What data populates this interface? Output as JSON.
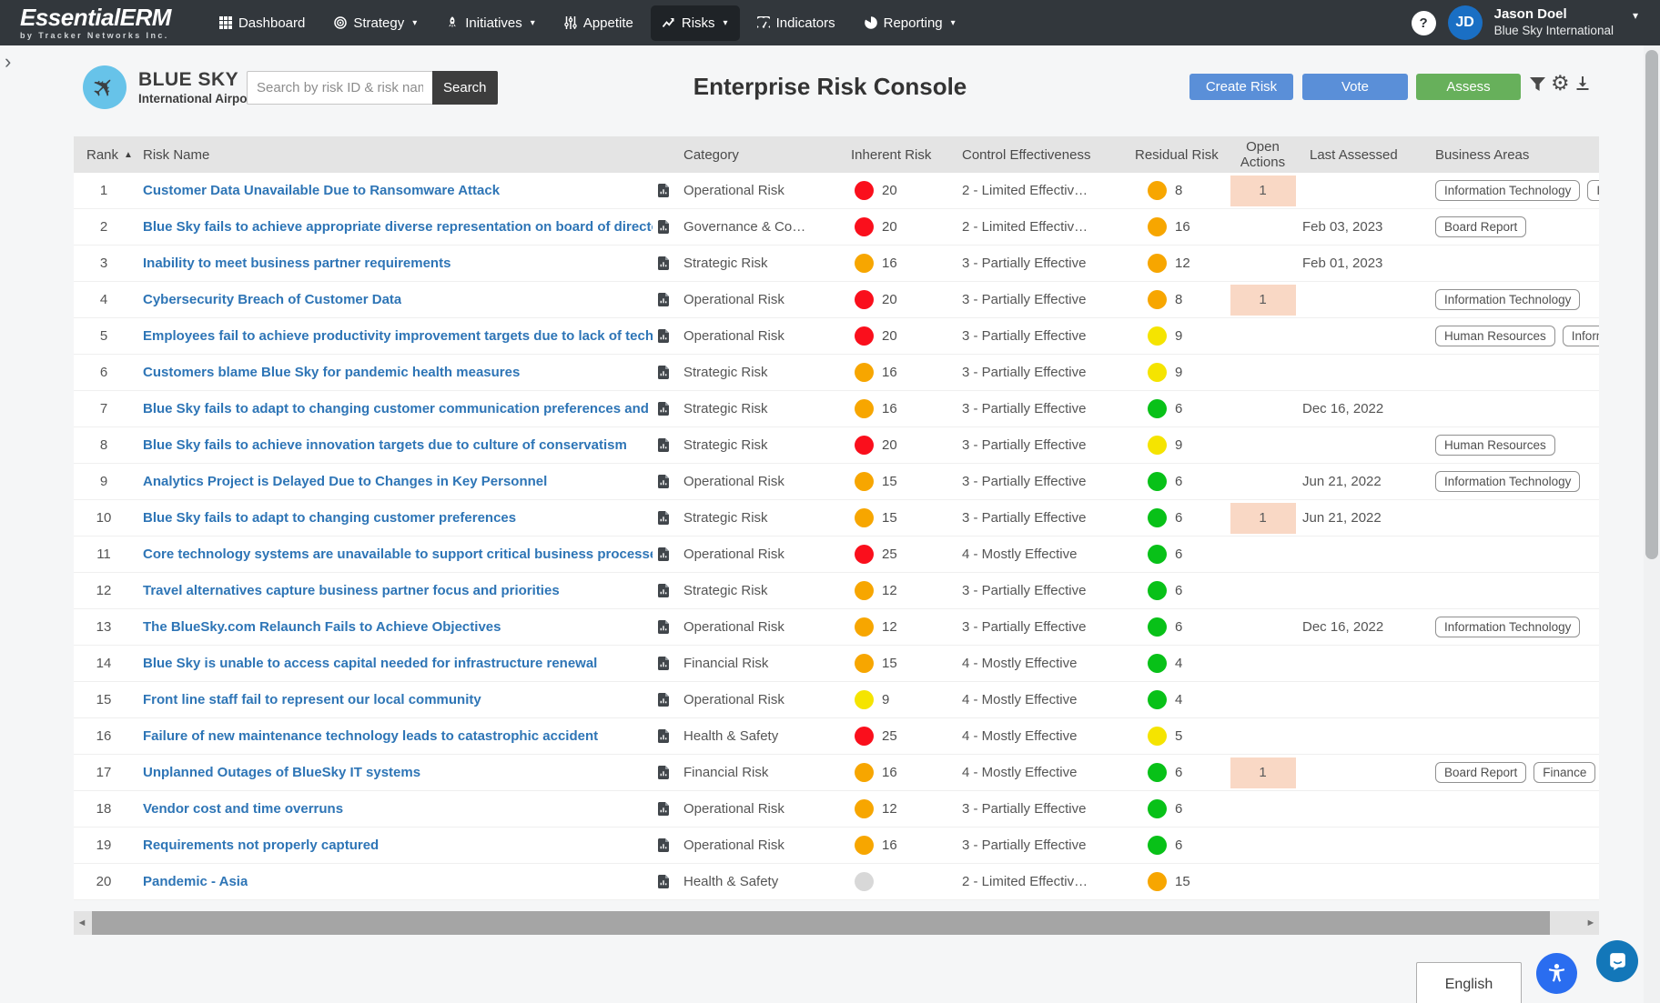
{
  "navbar": {
    "brand": "EssentialERM",
    "brand_sub": "by Tracker Networks Inc.",
    "items": [
      {
        "label": "Dashboard",
        "icon": "grid-icon",
        "caret": false,
        "active": false
      },
      {
        "label": "Strategy",
        "icon": "target-icon",
        "caret": true,
        "active": false
      },
      {
        "label": "Initiatives",
        "icon": "rocket-icon",
        "caret": true,
        "active": false
      },
      {
        "label": "Appetite",
        "icon": "sliders-icon",
        "caret": false,
        "active": false
      },
      {
        "label": "Risks",
        "icon": "trend-icon",
        "caret": true,
        "active": true
      },
      {
        "label": "Indicators",
        "icon": "gauge-icon",
        "caret": false,
        "active": false
      },
      {
        "label": "Reporting",
        "icon": "pie-icon",
        "caret": true,
        "active": false
      }
    ],
    "user": {
      "initials": "JD",
      "name": "Jason Doel",
      "org": "Blue Sky International"
    }
  },
  "header": {
    "org": {
      "line1": "BLUE SKY",
      "line2": "International Airport"
    },
    "search": {
      "placeholder": "Search by risk ID & risk name",
      "value": "",
      "button": "Search"
    },
    "title": "Enterprise Risk Console",
    "buttons": {
      "create": "Create Risk",
      "vote": "Vote",
      "assess": "Assess"
    }
  },
  "icons": {
    "sort": "▲",
    "nav_caret": "▾",
    "user_caret": "▾",
    "help": "?",
    "gear": "⚙",
    "plane": "✈",
    "chevron_expand": "›",
    "scroll_left": "◄",
    "scroll_right": "►"
  },
  "colors": {
    "red": "#fa0f1c",
    "orange": "#f7a600",
    "yellow": "#f5e400",
    "green": "#08c118",
    "gray": "#d8d8d8",
    "button_blue": "#5a8fd8",
    "button_green": "#67b05b",
    "actions_bg": "#f9d8c5"
  },
  "table": {
    "columns": {
      "rank": "Rank",
      "name": "Risk Name",
      "category": "Category",
      "inherent": "Inherent Risk",
      "control": "Control Effectiveness",
      "residual": "Residual Risk",
      "actions": "Open Actions",
      "assessed": "Last Assessed",
      "areas": "Business Areas"
    },
    "rows": [
      {
        "rank": 1,
        "name": "Customer Data Unavailable Due to Ransomware Attack",
        "category": "Operational Risk",
        "inherent": {
          "color": "red",
          "value": "20"
        },
        "control": "2 - Limited Effectiv…",
        "residual": {
          "color": "orange",
          "value": "8"
        },
        "open_actions": "1",
        "assessed": "",
        "areas": [
          "Information Technology",
          "Information Technology"
        ]
      },
      {
        "rank": 2,
        "name": "Blue Sky fails to achieve appropriate diverse representation on board of directors",
        "category": "Governance & Co…",
        "inherent": {
          "color": "red",
          "value": "20"
        },
        "control": "2 - Limited Effectiv…",
        "residual": {
          "color": "orange",
          "value": "16"
        },
        "open_actions": "",
        "assessed": "Feb 03, 2023",
        "areas": [
          "Board Report"
        ]
      },
      {
        "rank": 3,
        "name": "Inability to meet business partner requirements",
        "category": "Strategic Risk",
        "inherent": {
          "color": "orange",
          "value": "16"
        },
        "control": "3 - Partially Effective",
        "residual": {
          "color": "orange",
          "value": "12"
        },
        "open_actions": "",
        "assessed": "Feb 01, 2023",
        "areas": []
      },
      {
        "rank": 4,
        "name": "Cybersecurity Breach of Customer Data",
        "category": "Operational Risk",
        "inherent": {
          "color": "red",
          "value": "20"
        },
        "control": "3 - Partially Effective",
        "residual": {
          "color": "orange",
          "value": "8"
        },
        "open_actions": "1",
        "assessed": "",
        "areas": [
          "Information Technology"
        ]
      },
      {
        "rank": 5,
        "name": "Employees fail to achieve productivity improvement targets due to lack of technology and…",
        "category": "Operational Risk",
        "inherent": {
          "color": "red",
          "value": "20"
        },
        "control": "3 - Partially Effective",
        "residual": {
          "color": "yellow",
          "value": "9"
        },
        "open_actions": "",
        "assessed": "",
        "areas": [
          "Human Resources",
          "Information Technology"
        ]
      },
      {
        "rank": 6,
        "name": "Customers blame Blue Sky for pandemic health measures",
        "category": "Strategic Risk",
        "inherent": {
          "color": "orange",
          "value": "16"
        },
        "control": "3 - Partially Effective",
        "residual": {
          "color": "yellow",
          "value": "9"
        },
        "open_actions": "",
        "assessed": "",
        "areas": []
      },
      {
        "rank": 7,
        "name": "Blue Sky fails to adapt to changing customer communication preferences and channels",
        "category": "Strategic Risk",
        "inherent": {
          "color": "orange",
          "value": "16"
        },
        "control": "3 - Partially Effective",
        "residual": {
          "color": "green",
          "value": "6"
        },
        "open_actions": "",
        "assessed": "Dec 16, 2022",
        "areas": []
      },
      {
        "rank": 8,
        "name": "Blue Sky fails to achieve innovation targets due to culture of conservatism",
        "category": "Strategic Risk",
        "inherent": {
          "color": "red",
          "value": "20"
        },
        "control": "3 - Partially Effective",
        "residual": {
          "color": "yellow",
          "value": "9"
        },
        "open_actions": "",
        "assessed": "",
        "areas": [
          "Human Resources"
        ]
      },
      {
        "rank": 9,
        "name": "Analytics Project is Delayed Due to Changes in Key Personnel",
        "category": "Operational Risk",
        "inherent": {
          "color": "orange",
          "value": "15"
        },
        "control": "3 - Partially Effective",
        "residual": {
          "color": "green",
          "value": "6"
        },
        "open_actions": "",
        "assessed": "Jun 21, 2022",
        "areas": [
          "Information Technology"
        ]
      },
      {
        "rank": 10,
        "name": "Blue Sky fails to adapt to changing customer preferences",
        "category": "Strategic Risk",
        "inherent": {
          "color": "orange",
          "value": "15"
        },
        "control": "3 - Partially Effective",
        "residual": {
          "color": "green",
          "value": "6"
        },
        "open_actions": "1",
        "assessed": "Jun 21, 2022",
        "areas": []
      },
      {
        "rank": 11,
        "name": "Core technology systems are unavailable to support critical business processes",
        "category": "Operational Risk",
        "inherent": {
          "color": "red",
          "value": "25"
        },
        "control": "4 - Mostly Effective",
        "residual": {
          "color": "green",
          "value": "6"
        },
        "open_actions": "",
        "assessed": "",
        "areas": []
      },
      {
        "rank": 12,
        "name": "Travel alternatives capture business partner focus and priorities",
        "category": "Strategic Risk",
        "inherent": {
          "color": "orange",
          "value": "12"
        },
        "control": "3 - Partially Effective",
        "residual": {
          "color": "green",
          "value": "6"
        },
        "open_actions": "",
        "assessed": "",
        "areas": []
      },
      {
        "rank": 13,
        "name": "The BlueSky.com Relaunch Fails to Achieve Objectives",
        "category": "Operational Risk",
        "inherent": {
          "color": "orange",
          "value": "12"
        },
        "control": "3 - Partially Effective",
        "residual": {
          "color": "green",
          "value": "6"
        },
        "open_actions": "",
        "assessed": "Dec 16, 2022",
        "areas": [
          "Information Technology"
        ]
      },
      {
        "rank": 14,
        "name": "Blue Sky is unable to access capital needed for infrastructure renewal",
        "category": "Financial Risk",
        "inherent": {
          "color": "orange",
          "value": "15"
        },
        "control": "4 - Mostly Effective",
        "residual": {
          "color": "green",
          "value": "4"
        },
        "open_actions": "",
        "assessed": "",
        "areas": []
      },
      {
        "rank": 15,
        "name": "Front line staff fail to represent our local community",
        "category": "Operational Risk",
        "inherent": {
          "color": "yellow",
          "value": "9"
        },
        "control": "4 - Mostly Effective",
        "residual": {
          "color": "green",
          "value": "4"
        },
        "open_actions": "",
        "assessed": "",
        "areas": []
      },
      {
        "rank": 16,
        "name": "Failure of new maintenance technology leads to catastrophic accident",
        "category": "Health & Safety",
        "inherent": {
          "color": "red",
          "value": "25"
        },
        "control": "4 - Mostly Effective",
        "residual": {
          "color": "yellow",
          "value": "5"
        },
        "open_actions": "",
        "assessed": "",
        "areas": []
      },
      {
        "rank": 17,
        "name": "Unplanned Outages of BlueSky IT systems",
        "category": "Financial Risk",
        "inherent": {
          "color": "orange",
          "value": "16"
        },
        "control": "4 - Mostly Effective",
        "residual": {
          "color": "green",
          "value": "6"
        },
        "open_actions": "1",
        "assessed": "",
        "areas": [
          "Board Report",
          "Finance"
        ]
      },
      {
        "rank": 18,
        "name": "Vendor cost and time overruns",
        "category": "Operational Risk",
        "inherent": {
          "color": "orange",
          "value": "12"
        },
        "control": "3 - Partially Effective",
        "residual": {
          "color": "green",
          "value": "6"
        },
        "open_actions": "",
        "assessed": "",
        "areas": []
      },
      {
        "rank": 19,
        "name": "Requirements not properly captured",
        "category": "Operational Risk",
        "inherent": {
          "color": "orange",
          "value": "16"
        },
        "control": "3 - Partially Effective",
        "residual": {
          "color": "green",
          "value": "6"
        },
        "open_actions": "",
        "assessed": "",
        "areas": []
      },
      {
        "rank": 20,
        "name": "Pandemic - Asia",
        "category": "Health & Safety",
        "inherent": {
          "color": "gray",
          "value": ""
        },
        "control": "2 - Limited Effectiv…",
        "residual": {
          "color": "orange",
          "value": "15"
        },
        "open_actions": "",
        "assessed": "",
        "areas": []
      }
    ]
  },
  "footer": {
    "language": "English"
  }
}
